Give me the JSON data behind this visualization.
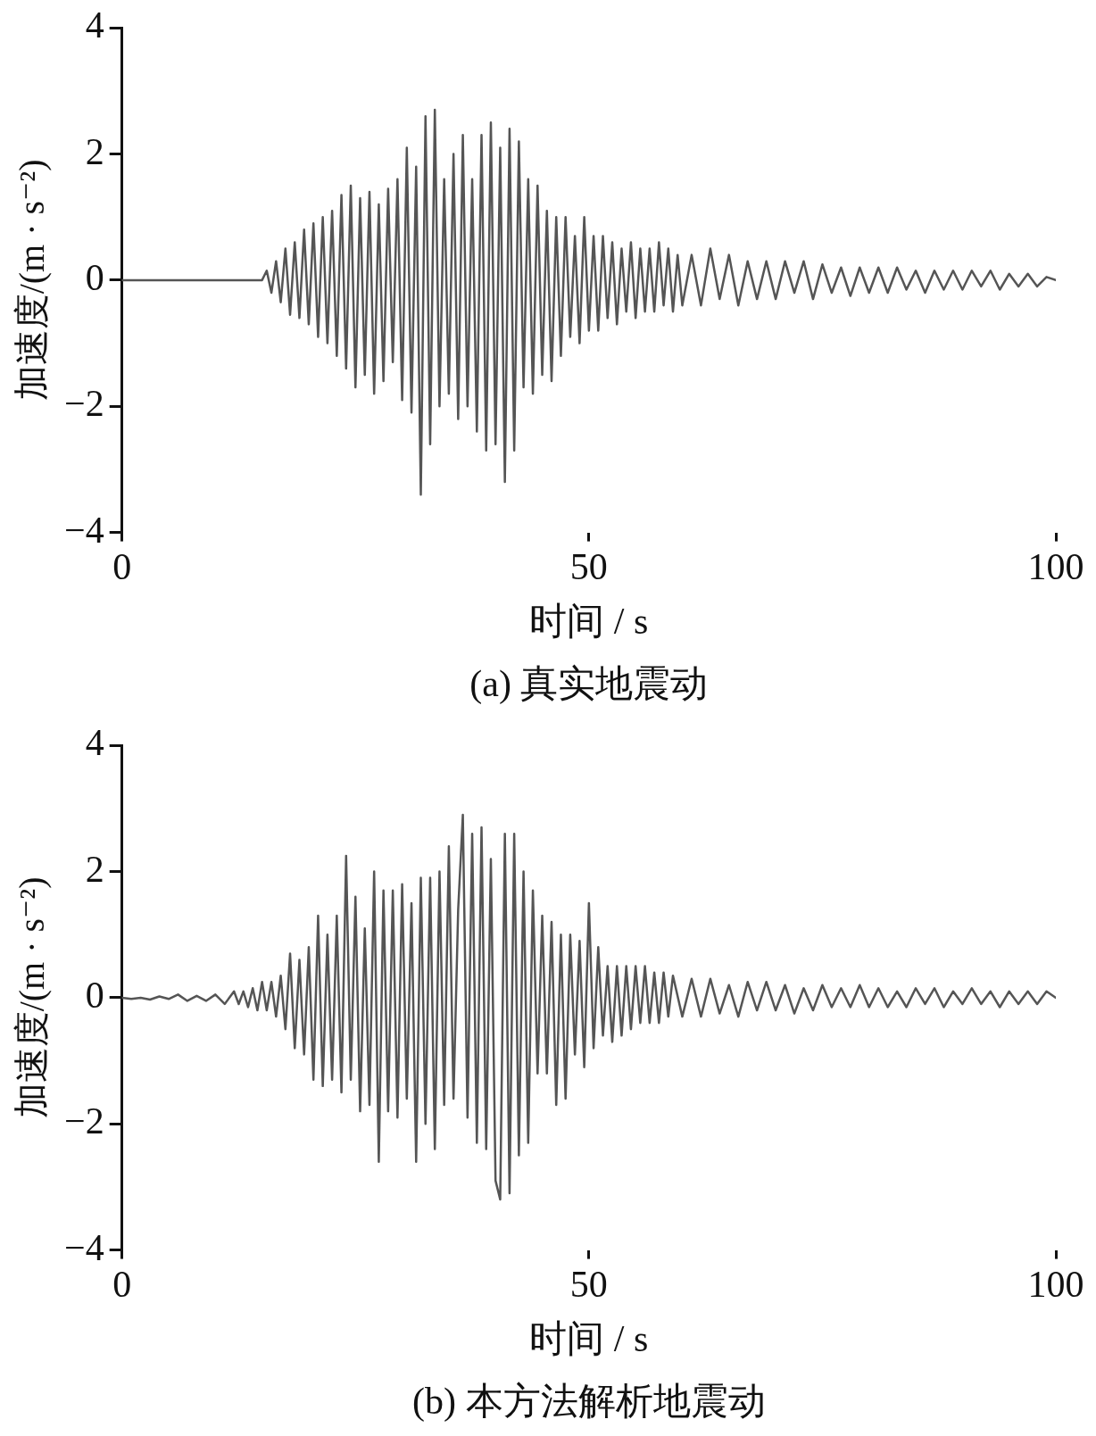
{
  "chart_data": [
    {
      "type": "line",
      "title": "(a) 真实地震动",
      "xlabel": "时间 / s",
      "ylabel": "加速度/(m · s⁻²)",
      "xlim": [
        0,
        100
      ],
      "xticks": [
        0,
        50,
        100
      ],
      "ylim": [
        -4,
        4
      ],
      "yticks": [
        4,
        2,
        0,
        -2,
        -4
      ],
      "marker": "none",
      "series": [
        {
          "color": "#555555",
          "x": [
            0,
            15,
            15.5,
            16,
            16.5,
            17,
            17.5,
            18,
            18.5,
            19,
            19.5,
            20,
            20.5,
            21,
            21.5,
            22,
            22.5,
            23,
            23.5,
            24,
            24.5,
            25,
            25.5,
            26,
            26.5,
            27,
            27.5,
            28,
            28.5,
            29,
            29.5,
            30,
            30.5,
            31,
            31.5,
            32,
            32.5,
            33,
            33.5,
            34,
            34.5,
            35,
            35.5,
            36,
            36.5,
            37,
            37.5,
            38,
            38.5,
            39,
            39.5,
            40,
            40.5,
            41,
            41.5,
            42,
            42.5,
            43,
            43.5,
            44,
            44.5,
            45,
            45.5,
            46,
            46.5,
            47,
            47.5,
            48,
            48.5,
            49,
            49.5,
            50,
            50.5,
            51,
            51.5,
            52,
            52.5,
            53,
            53.5,
            54,
            54.5,
            55,
            55.5,
            56,
            56.5,
            57,
            57.5,
            58,
            58.5,
            59,
            59.5,
            60,
            61,
            62,
            63,
            64,
            65,
            66,
            67,
            68,
            69,
            70,
            71,
            72,
            73,
            74,
            75,
            76,
            77,
            78,
            79,
            80,
            81,
            82,
            83,
            84,
            85,
            86,
            87,
            88,
            89,
            90,
            91,
            92,
            93,
            94,
            95,
            96,
            97,
            98,
            99,
            100
          ],
          "values": [
            0,
            0,
            0.15,
            -0.2,
            0.3,
            -0.35,
            0.5,
            -0.55,
            0.6,
            -0.6,
            0.8,
            -0.7,
            0.9,
            -0.9,
            1.0,
            -1.0,
            1.1,
            -1.2,
            1.35,
            -1.4,
            1.5,
            -1.7,
            1.3,
            -1.5,
            1.4,
            -1.8,
            1.2,
            -1.6,
            1.45,
            -1.3,
            1.6,
            -1.9,
            2.1,
            -2.1,
            1.8,
            -3.4,
            2.6,
            -2.6,
            2.7,
            -2.0,
            1.6,
            -1.8,
            2.0,
            -2.2,
            2.3,
            -2.0,
            1.6,
            -2.4,
            2.3,
            -2.7,
            2.5,
            -2.6,
            2.1,
            -3.2,
            2.4,
            -2.7,
            2.2,
            -1.7,
            1.6,
            -1.8,
            1.5,
            -1.5,
            1.1,
            -1.6,
            1.0,
            -1.2,
            1.0,
            -0.9,
            0.7,
            -1.0,
            1.0,
            -0.8,
            0.7,
            -0.8,
            0.7,
            -0.6,
            0.6,
            -0.7,
            0.5,
            -0.5,
            0.6,
            -0.6,
            0.5,
            -0.5,
            0.5,
            -0.5,
            0.6,
            -0.4,
            0.5,
            -0.5,
            0.4,
            -0.4,
            0.4,
            -0.4,
            0.5,
            -0.3,
            0.4,
            -0.4,
            0.3,
            -0.3,
            0.3,
            -0.3,
            0.3,
            -0.2,
            0.3,
            -0.3,
            0.25,
            -0.2,
            0.2,
            -0.25,
            0.2,
            -0.2,
            0.2,
            -0.2,
            0.2,
            -0.15,
            0.15,
            -0.2,
            0.15,
            -0.15,
            0.15,
            -0.15,
            0.15,
            -0.1,
            0.15,
            -0.15,
            0.1,
            -0.1,
            0.1,
            -0.1,
            0.05,
            0
          ]
        }
      ]
    },
    {
      "type": "line",
      "title": "(b) 本方法解析地震动",
      "xlabel": "时间 / s",
      "ylabel": "加速度/(m · s⁻²)",
      "xlim": [
        0,
        100
      ],
      "xticks": [
        0,
        50,
        100
      ],
      "ylim": [
        -4,
        4
      ],
      "yticks": [
        4,
        2,
        0,
        -2,
        -4
      ],
      "marker": "none",
      "series": [
        {
          "color": "#555555",
          "x": [
            0,
            1,
            2,
            3,
            4,
            5,
            6,
            7,
            8,
            9,
            10,
            11,
            12,
            12.5,
            13,
            13.5,
            14,
            14.5,
            15,
            15.5,
            16,
            16.5,
            17,
            17.5,
            18,
            18.5,
            19,
            19.5,
            20,
            20.5,
            21,
            21.5,
            22,
            22.5,
            23,
            23.5,
            24,
            24.5,
            25,
            25.5,
            26,
            26.5,
            27,
            27.5,
            28,
            28.5,
            29,
            29.5,
            30,
            30.5,
            31,
            31.5,
            32,
            32.5,
            33,
            33.5,
            34,
            34.5,
            35,
            35.5,
            36,
            36.5,
            37,
            37.5,
            38,
            38.5,
            39,
            39.5,
            40,
            40.5,
            41,
            41.5,
            42,
            42.5,
            43,
            43.5,
            44,
            44.5,
            45,
            45.5,
            46,
            46.5,
            47,
            47.5,
            48,
            48.5,
            49,
            49.5,
            50,
            50.5,
            51,
            51.5,
            52,
            52.5,
            53,
            53.5,
            54,
            54.5,
            55,
            55.5,
            56,
            56.5,
            57,
            57.5,
            58,
            58.5,
            59,
            60,
            61,
            62,
            63,
            64,
            65,
            66,
            67,
            68,
            69,
            70,
            71,
            72,
            73,
            74,
            75,
            76,
            77,
            78,
            79,
            80,
            81,
            82,
            83,
            84,
            85,
            86,
            87,
            88,
            89,
            90,
            91,
            92,
            93,
            94,
            95,
            96,
            97,
            98,
            99,
            100
          ],
          "values": [
            0,
            -0.02,
            0,
            -0.03,
            0.02,
            -0.02,
            0.05,
            -0.05,
            0.03,
            -0.05,
            0.05,
            -0.1,
            0.1,
            -0.1,
            0.1,
            -0.15,
            0.15,
            -0.2,
            0.25,
            -0.2,
            0.25,
            -0.3,
            0.35,
            -0.5,
            0.7,
            -0.8,
            0.6,
            -0.9,
            0.8,
            -1.3,
            1.3,
            -1.4,
            1.0,
            -1.3,
            1.3,
            -1.5,
            2.25,
            -1.3,
            1.6,
            -1.8,
            1.1,
            -1.7,
            2.0,
            -2.6,
            1.7,
            -1.8,
            1.7,
            -1.9,
            1.8,
            -1.6,
            1.5,
            -2.6,
            1.9,
            -2.0,
            1.9,
            -2.4,
            2.0,
            -1.7,
            2.4,
            -1.6,
            1.4,
            2.9,
            -1.9,
            2.6,
            -2.3,
            2.7,
            -2.4,
            2.2,
            -2.9,
            -3.2,
            2.6,
            -3.1,
            2.6,
            -2.5,
            2.0,
            -2.3,
            1.7,
            -1.2,
            1.3,
            -1.2,
            1.2,
            -1.7,
            1.0,
            -1.6,
            1.0,
            -0.9,
            0.9,
            -1.1,
            1.5,
            -0.8,
            0.8,
            -0.6,
            0.5,
            -0.7,
            0.5,
            -0.6,
            0.5,
            -0.5,
            0.5,
            -0.4,
            0.5,
            -0.4,
            0.4,
            -0.4,
            0.4,
            -0.3,
            0.35,
            -0.3,
            0.3,
            -0.3,
            0.3,
            -0.25,
            0.2,
            -0.3,
            0.25,
            -0.2,
            0.25,
            -0.2,
            0.2,
            -0.25,
            0.15,
            -0.2,
            0.2,
            -0.15,
            0.15,
            -0.15,
            0.2,
            -0.15,
            0.15,
            -0.15,
            0.1,
            -0.15,
            0.15,
            -0.1,
            0.15,
            -0.15,
            0.1,
            -0.1,
            0.15,
            -0.1,
            0.1,
            -0.15,
            0.1,
            -0.1,
            0.1,
            -0.1,
            0.1,
            0
          ]
        }
      ]
    }
  ]
}
